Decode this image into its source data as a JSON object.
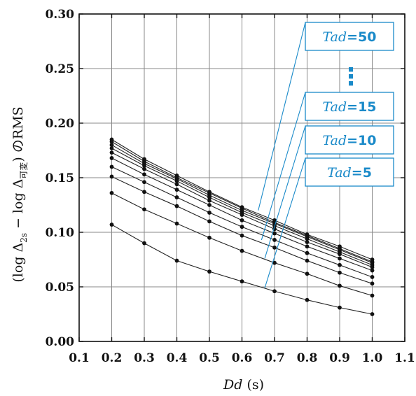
{
  "chart_data": {
    "type": "line",
    "title": "",
    "xlabel_var": "Dd",
    "xlabel_unit": "(s)",
    "ylabel": "(log Δ2s − log Δ可変) のRMS",
    "ylabel_parts": {
      "open": "(log Δ",
      "sub1": "2s",
      "minus": " − log Δ",
      "sub2": "可変",
      "close": ") のRMS"
    },
    "xlim": [
      0.1,
      1.1
    ],
    "ylim": [
      0.0,
      0.3
    ],
    "x_ticks": [
      "0.1",
      "0.2",
      "0.3",
      "0.4",
      "0.5",
      "0.6",
      "0.7",
      "0.8",
      "0.9",
      "1.0",
      "1.1"
    ],
    "y_ticks": [
      "0.00",
      "0.05",
      "0.10",
      "0.15",
      "0.20",
      "0.25",
      "0.30"
    ],
    "x_tick_values": [
      0.1,
      0.2,
      0.3,
      0.4,
      0.5,
      0.6,
      0.7,
      0.8,
      0.9,
      1.0,
      1.1
    ],
    "y_tick_values": [
      0.0,
      0.05,
      0.1,
      0.15,
      0.2,
      0.25,
      0.3
    ],
    "grid": true,
    "x": [
      0.2,
      0.3,
      0.4,
      0.5,
      0.6,
      0.7,
      0.8,
      0.9,
      1.0
    ],
    "series": [
      {
        "values": [
          0.107,
          0.09,
          0.074,
          0.064,
          0.055,
          0.046,
          0.038,
          0.031,
          0.025
        ]
      },
      {
        "values": [
          0.136,
          0.121,
          0.108,
          0.095,
          0.083,
          0.072,
          0.062,
          0.051,
          0.042
        ]
      },
      {
        "values": [
          0.151,
          0.137,
          0.124,
          0.11,
          0.097,
          0.086,
          0.074,
          0.063,
          0.053
        ]
      },
      {
        "values": [
          0.16,
          0.146,
          0.132,
          0.118,
          0.105,
          0.093,
          0.081,
          0.07,
          0.059
        ]
      },
      {
        "values": [
          0.168,
          0.153,
          0.139,
          0.125,
          0.111,
          0.099,
          0.087,
          0.076,
          0.065
        ]
      },
      {
        "values": [
          0.173,
          0.158,
          0.144,
          0.129,
          0.116,
          0.103,
          0.091,
          0.08,
          0.068
        ]
      },
      {
        "values": [
          0.177,
          0.161,
          0.147,
          0.132,
          0.118,
          0.106,
          0.094,
          0.082,
          0.07
        ]
      },
      {
        "values": [
          0.18,
          0.163,
          0.149,
          0.134,
          0.12,
          0.108,
          0.096,
          0.084,
          0.072
        ]
      },
      {
        "values": [
          0.183,
          0.165,
          0.15,
          0.136,
          0.122,
          0.109,
          0.097,
          0.085,
          0.073
        ]
      },
      {
        "values": [
          0.185,
          0.167,
          0.152,
          0.137,
          0.123,
          0.111,
          0.098,
          0.087,
          0.075
        ]
      }
    ],
    "annotations": [
      {
        "var": "Tad",
        "text": "=50",
        "target": [
          0.65,
          0.12
        ]
      },
      {
        "var": "Tad",
        "text": "=15",
        "target": [
          0.66,
          0.093
        ]
      },
      {
        "var": "Tad",
        "text": "=10",
        "target": [
          0.67,
          0.076
        ]
      },
      {
        "var": "Tad",
        "text": "=5",
        "target": [
          0.67,
          0.049
        ]
      }
    ],
    "ellipsis": "⋮",
    "colors": {
      "line": "#222222",
      "grid": "#888888",
      "annotation": "#1a8ac9",
      "background": "#ffffff"
    }
  }
}
